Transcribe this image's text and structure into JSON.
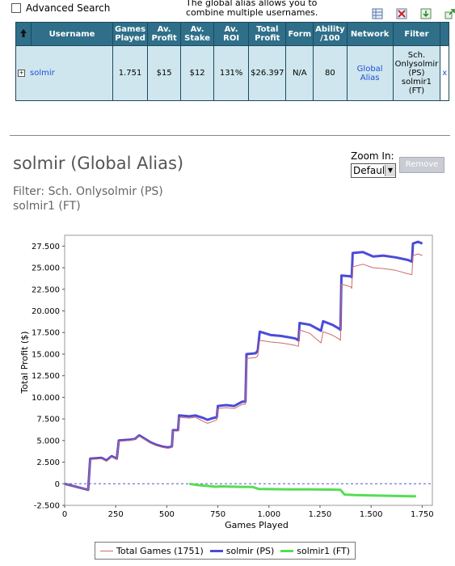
{
  "top": {
    "advanced_search": "Advanced Search",
    "tooltip_line1": "The global alias allows you to",
    "tooltip_line2": "combine multiple usernames."
  },
  "icons": [
    "grid-icon",
    "delete-icon",
    "download-icon",
    "export-icon"
  ],
  "table": {
    "headers": [
      "Username",
      "Games Played",
      "Av. Profit",
      "Av. Stake",
      "Av. ROI",
      "Total Profit",
      "Form",
      "Ability /100",
      "Network",
      "Filter"
    ],
    "row": {
      "expand": "+",
      "username": "solmir",
      "games_played": "1.751",
      "av_profit": "$15",
      "av_stake": "$12",
      "av_roi": "131%",
      "total_profit": "$26.397",
      "form": "N/A",
      "ability": "80",
      "network": "Global Alias",
      "filter_lines": [
        "Sch.",
        "Onlysolmir",
        "(PS)",
        "solmir1",
        "(FT)"
      ],
      "remove": "x"
    }
  },
  "alias": {
    "title": "solmir (Global Alias)",
    "filter_line1": "Filter: Sch. Onlysolmir (PS)",
    "filter_line2": "solmir1 (FT)"
  },
  "zoom": {
    "label": "Zoom In:",
    "selected": "Default",
    "remove_button": "Remove"
  },
  "chart_data": {
    "type": "line",
    "xlabel": "Games Played",
    "ylabel": "Total Profit ($)",
    "xlim": [
      0,
      1800
    ],
    "ylim": [
      -2500,
      28750
    ],
    "x_ticks": [
      0,
      250,
      500,
      750,
      1000,
      1250,
      1500,
      1750
    ],
    "x_tick_labels": [
      "0",
      "250",
      "500",
      "750",
      "1.000",
      "1.250",
      "1.500",
      "1.750"
    ],
    "y_ticks": [
      -2500,
      0,
      2500,
      5000,
      7500,
      10000,
      12500,
      15000,
      17500,
      20000,
      22500,
      25000,
      27500
    ],
    "y_tick_labels": [
      "-2.500",
      "0",
      "2.500",
      "5.000",
      "7.500",
      "10.000",
      "12.500",
      "15.000",
      "17.500",
      "20.000",
      "22.500",
      "25.000",
      "27.500"
    ],
    "zero_line": "dashed",
    "series": [
      {
        "name": "Total Games (1751)",
        "color": "#d06a6a",
        "points": [
          [
            0,
            0
          ],
          [
            115,
            -700
          ],
          [
            125,
            2800
          ],
          [
            180,
            2900
          ],
          [
            205,
            2600
          ],
          [
            230,
            3100
          ],
          [
            255,
            2800
          ],
          [
            265,
            4900
          ],
          [
            320,
            5000
          ],
          [
            345,
            5200
          ],
          [
            365,
            5500
          ],
          [
            400,
            5000
          ],
          [
            420,
            4700
          ],
          [
            450,
            4400
          ],
          [
            480,
            4200
          ],
          [
            505,
            4100
          ],
          [
            525,
            4200
          ],
          [
            530,
            6100
          ],
          [
            555,
            6100
          ],
          [
            560,
            7700
          ],
          [
            610,
            7600
          ],
          [
            640,
            7700
          ],
          [
            680,
            7200
          ],
          [
            700,
            7000
          ],
          [
            725,
            7200
          ],
          [
            745,
            7400
          ],
          [
            750,
            8700
          ],
          [
            790,
            8800
          ],
          [
            830,
            8700
          ],
          [
            870,
            9200
          ],
          [
            885,
            9200
          ],
          [
            890,
            14500
          ],
          [
            935,
            14600
          ],
          [
            945,
            14800
          ],
          [
            955,
            16600
          ],
          [
            1010,
            16400
          ],
          [
            1060,
            16300
          ],
          [
            1110,
            16100
          ],
          [
            1130,
            16000
          ],
          [
            1145,
            15900
          ],
          [
            1150,
            17800
          ],
          [
            1200,
            17400
          ],
          [
            1240,
            16600
          ],
          [
            1255,
            16300
          ],
          [
            1265,
            17600
          ],
          [
            1310,
            17200
          ],
          [
            1340,
            16800
          ],
          [
            1350,
            16600
          ],
          [
            1355,
            23100
          ],
          [
            1400,
            22800
          ],
          [
            1405,
            22600
          ],
          [
            1410,
            25100
          ],
          [
            1460,
            25400
          ],
          [
            1510,
            25000
          ],
          [
            1560,
            24900
          ],
          [
            1620,
            24700
          ],
          [
            1680,
            24300
          ],
          [
            1700,
            24200
          ],
          [
            1705,
            26400
          ],
          [
            1730,
            26600
          ],
          [
            1751,
            26400
          ]
        ]
      },
      {
        "name": "solmir (PS)",
        "color": "#4b4bd8",
        "points": [
          [
            0,
            0
          ],
          [
            115,
            -700
          ],
          [
            125,
            2900
          ],
          [
            180,
            3000
          ],
          [
            205,
            2700
          ],
          [
            230,
            3200
          ],
          [
            255,
            2900
          ],
          [
            265,
            5000
          ],
          [
            320,
            5100
          ],
          [
            345,
            5200
          ],
          [
            365,
            5600
          ],
          [
            400,
            5100
          ],
          [
            420,
            4800
          ],
          [
            450,
            4500
          ],
          [
            480,
            4300
          ],
          [
            505,
            4200
          ],
          [
            525,
            4300
          ],
          [
            530,
            6200
          ],
          [
            555,
            6200
          ],
          [
            560,
            7900
          ],
          [
            610,
            7800
          ],
          [
            640,
            7900
          ],
          [
            680,
            7600
          ],
          [
            700,
            7400
          ],
          [
            725,
            7600
          ],
          [
            745,
            7700
          ],
          [
            750,
            9000
          ],
          [
            790,
            9100
          ],
          [
            830,
            9000
          ],
          [
            870,
            9500
          ],
          [
            885,
            9500
          ],
          [
            890,
            15000
          ],
          [
            935,
            15100
          ],
          [
            945,
            15400
          ],
          [
            955,
            17600
          ],
          [
            1010,
            17200
          ],
          [
            1060,
            17100
          ],
          [
            1110,
            16900
          ],
          [
            1130,
            16800
          ],
          [
            1145,
            16600
          ],
          [
            1150,
            18600
          ],
          [
            1200,
            18400
          ],
          [
            1240,
            17900
          ],
          [
            1255,
            17700
          ],
          [
            1265,
            18800
          ],
          [
            1310,
            18400
          ],
          [
            1340,
            18000
          ],
          [
            1350,
            17800
          ],
          [
            1355,
            24100
          ],
          [
            1400,
            24000
          ],
          [
            1405,
            23900
          ],
          [
            1410,
            26700
          ],
          [
            1460,
            26800
          ],
          [
            1510,
            26300
          ],
          [
            1560,
            26400
          ],
          [
            1620,
            26200
          ],
          [
            1680,
            25900
          ],
          [
            1700,
            25700
          ],
          [
            1705,
            27800
          ],
          [
            1730,
            28000
          ],
          [
            1751,
            27800
          ]
        ]
      },
      {
        "name": "solmir1 (FT)",
        "color": "#55dd55",
        "points": [
          [
            610,
            0
          ],
          [
            650,
            -150
          ],
          [
            700,
            -250
          ],
          [
            740,
            -350
          ],
          [
            760,
            -300
          ],
          [
            800,
            -320
          ],
          [
            860,
            -360
          ],
          [
            920,
            -380
          ],
          [
            950,
            -600
          ],
          [
            1000,
            -620
          ],
          [
            1100,
            -650
          ],
          [
            1200,
            -660
          ],
          [
            1300,
            -680
          ],
          [
            1350,
            -700
          ],
          [
            1370,
            -1250
          ],
          [
            1420,
            -1300
          ],
          [
            1500,
            -1350
          ],
          [
            1600,
            -1400
          ],
          [
            1700,
            -1450
          ],
          [
            1720,
            -1450
          ]
        ]
      }
    ],
    "legend_position": "bottom"
  }
}
